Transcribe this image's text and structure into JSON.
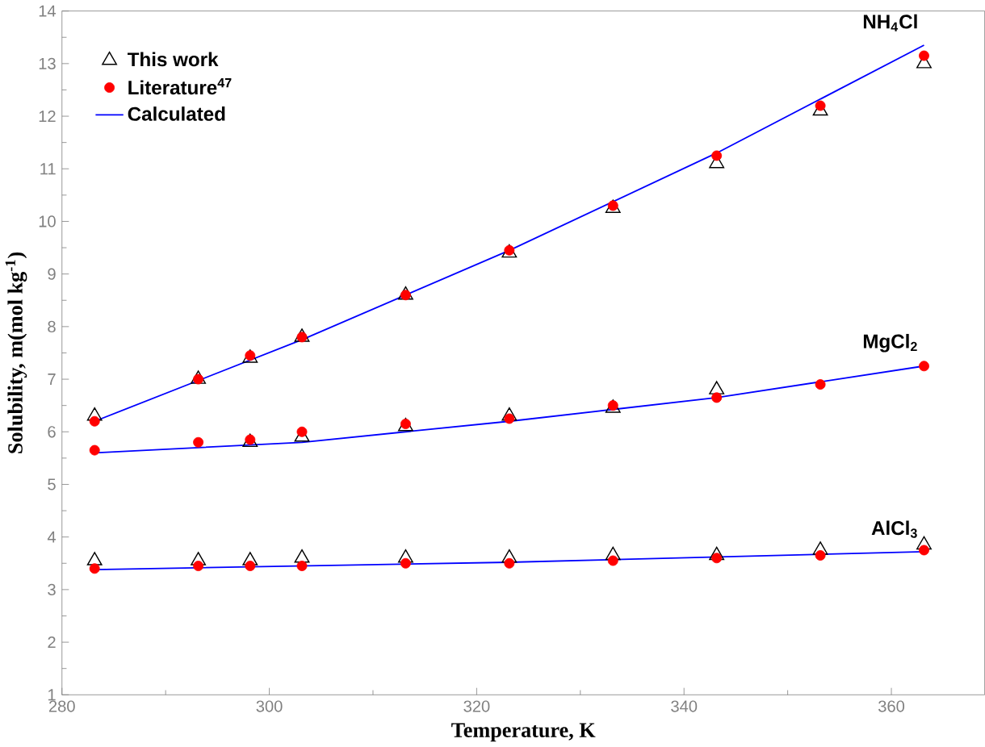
{
  "chart_data": {
    "type": "scatter",
    "xlabel": "Temperature, K",
    "ylabel": "Solubility, m(mol kg$^{-1}$)",
    "xlim": [
      280,
      369
    ],
    "xticks": [
      280,
      300,
      320,
      340,
      360
    ],
    "ylim": [
      1,
      14
    ],
    "yticks": [
      1,
      2,
      3,
      4,
      5,
      6,
      7,
      8,
      9,
      10,
      11,
      12,
      13,
      14
    ],
    "legend": "top left",
    "grid": false,
    "series": [
      {
        "name": "This work",
        "marker": "triangle",
        "color": "#000000",
        "x": [
          283.15,
          293.15,
          298.15,
          303.15,
          313.15,
          323.15,
          333.15,
          343.15,
          353.15,
          363.15
        ],
        "values": [
          6.3,
          7.0,
          7.4,
          7.8,
          8.6,
          9.4,
          10.25,
          11.1,
          12.1,
          13.0
        ]
      },
      {
        "name": "Literature$^{47}$",
        "marker": "circle",
        "color": "#ff0000",
        "x": [
          283.15,
          293.15,
          298.15,
          303.15,
          313.15,
          323.15,
          333.15,
          343.15,
          353.15,
          363.15
        ],
        "values": [
          6.2,
          7.0,
          7.45,
          7.8,
          8.6,
          9.45,
          10.3,
          11.25,
          12.2,
          13.15
        ]
      },
      {
        "name": "Calculated",
        "type": "line",
        "marker": "none",
        "color": "#0000ff",
        "x": [
          283.15,
          303.15,
          323.15,
          343.15,
          363.15
        ],
        "values": [
          6.2,
          7.75,
          9.45,
          11.3,
          13.35
        ]
      },
      {
        "marker": "triangle",
        "color": "#000000",
        "x": [
          298.15,
          303.15,
          313.15,
          323.15,
          333.15,
          343.15
        ],
        "values": [
          5.8,
          5.9,
          6.1,
          6.3,
          6.45,
          6.8
        ]
      },
      {
        "marker": "circle",
        "color": "#ff0000",
        "x": [
          283.15,
          293.15,
          298.15,
          303.15,
          313.15,
          323.15,
          333.15,
          343.15,
          353.15,
          363.15
        ],
        "values": [
          5.65,
          5.8,
          5.85,
          6.0,
          6.15,
          6.25,
          6.5,
          6.65,
          6.9,
          7.25
        ]
      },
      {
        "type": "line",
        "marker": "none",
        "color": "#0000ff",
        "x": [
          283.15,
          303.15,
          323.15,
          343.15,
          363.15
        ],
        "values": [
          5.6,
          5.8,
          6.2,
          6.65,
          7.25
        ]
      },
      {
        "marker": "triangle",
        "color": "#000000",
        "x": [
          283.15,
          293.15,
          298.15,
          303.15,
          313.15,
          323.15,
          333.15,
          343.15,
          353.15,
          363.15
        ],
        "values": [
          3.55,
          3.55,
          3.55,
          3.6,
          3.6,
          3.6,
          3.65,
          3.65,
          3.75,
          3.85
        ]
      },
      {
        "marker": "circle",
        "color": "#ff0000",
        "x": [
          283.15,
          293.15,
          298.15,
          303.15,
          313.15,
          323.15,
          333.15,
          343.15,
          353.15,
          363.15
        ],
        "values": [
          3.4,
          3.45,
          3.45,
          3.45,
          3.5,
          3.5,
          3.55,
          3.6,
          3.65,
          3.75
        ]
      },
      {
        "type": "line",
        "marker": "none",
        "color": "#0000ff",
        "x": [
          283.15,
          323.15,
          363.15
        ],
        "values": [
          3.38,
          3.52,
          3.72
        ]
      }
    ],
    "annotations": [
      "NH$_{4}$Cl",
      "MgCl$_{2}$",
      "AlCl$_{3}$"
    ]
  }
}
